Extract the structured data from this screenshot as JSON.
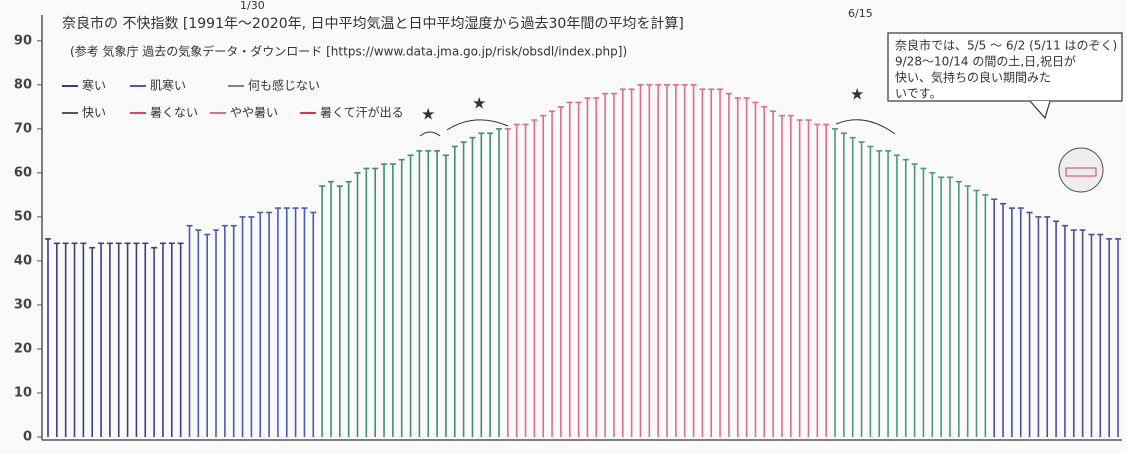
{
  "chart_data": {
    "type": "bar",
    "title": "奈良市の 不快指数 [1991年～2020年, 日中平均気温と日中平均湿度から過去30年間の平均を計算]",
    "subtitle": "(参考 気象庁 過去の気象データ・ダウンロード [https://www.data.jma.go.jp/risk/obsdl/index.php])",
    "legend": [
      {
        "name": "寒い",
        "color": "#3c3f7e"
      },
      {
        "name": "肌寒い",
        "color": "#4a5cae"
      },
      {
        "name": "何も感じない",
        "color": "#6f8f7a"
      },
      {
        "name": "快い",
        "color": "#555555"
      },
      {
        "name": "暑くない",
        "color": "#e0406a"
      },
      {
        "name": "やや暑い",
        "color": "#e26b8a"
      },
      {
        "name": "暑くて汗が出る",
        "color": "#d8344a"
      }
    ],
    "annotations": [
      "1/30",
      "6/15"
    ],
    "note": [
      "奈良市では、5/5 ～ 6/2 (5/11 はのぞく)",
      "9/28～10/14 の間の土,日,祝日が",
      "快い、気持ちの良い期間みた",
      "いです。"
    ],
    "values": [
      45,
      44,
      44,
      44,
      44,
      43,
      44,
      44,
      44,
      44,
      44,
      44,
      43,
      44,
      44,
      44,
      48,
      47,
      46,
      47,
      48,
      48,
      50,
      50,
      51,
      51,
      52,
      52,
      52,
      52,
      51,
      57,
      58,
      57,
      58,
      60,
      61,
      61,
      62,
      62,
      63,
      64,
      65,
      65,
      65,
      64,
      66,
      67,
      68,
      69,
      69,
      70,
      70,
      71,
      71,
      72,
      73,
      74,
      75,
      76,
      76,
      77,
      77,
      78,
      78,
      79,
      79,
      80,
      80,
      80,
      80,
      80,
      80,
      80,
      79,
      79,
      79,
      78,
      77,
      77,
      76,
      75,
      74,
      73,
      73,
      72,
      72,
      71,
      71,
      70,
      69,
      68,
      67,
      66,
      65,
      65,
      64,
      63,
      62,
      61,
      60,
      59,
      59,
      58,
      57,
      56,
      55,
      54,
      53,
      52,
      52,
      51,
      50,
      50,
      49,
      48,
      47,
      47,
      46,
      46,
      45,
      45
    ],
    "colors": [
      "#3c3f7e",
      "#3c3f7e",
      "#3c3f7e",
      "#3c3f7e",
      "#3c3f7e",
      "#3c3f7e",
      "#3c3f7e",
      "#3c3f7e",
      "#3c3f7e",
      "#3c3f7e",
      "#3c3f7e",
      "#3c3f7e",
      "#3c3f7e",
      "#3c3f7e",
      "#3c3f7e",
      "#3c3f7e",
      "#4a5cae",
      "#4a5cae",
      "#4a5cae",
      "#4a5cae",
      "#4a5cae",
      "#4a5cae",
      "#4a5cae",
      "#4a5cae",
      "#4a5cae",
      "#4a5cae",
      "#4a5cae",
      "#4a5cae",
      "#4a5cae",
      "#4a5cae",
      "#4a5cae",
      "#3f8f6a",
      "#3f8f6a",
      "#3f8f6a",
      "#3f8f6a",
      "#3f8f6a",
      "#3f8f6a",
      "#3f8f6a",
      "#3f8f6a",
      "#3f8f6a",
      "#3f8f6a",
      "#3f8f6a",
      "#3f8f6a",
      "#3f8f6a",
      "#3f8f6a",
      "#3f8f6a",
      "#3f8f6a",
      "#3f8f6a",
      "#3f8f6a",
      "#3f8f6a",
      "#3f8f6a",
      "#3f8f6a",
      "#e26b8a",
      "#e26b8a",
      "#e26b8a",
      "#e26b8a",
      "#e26b8a",
      "#e26b8a",
      "#e26b8a",
      "#e26b8a",
      "#e26b8a",
      "#e26b8a",
      "#e26b8a",
      "#e26b8a",
      "#e26b8a",
      "#e26b8a",
      "#e26b8a",
      "#e26b8a",
      "#e26b8a",
      "#e26b8a",
      "#e26b8a",
      "#e26b8a",
      "#e26b8a",
      "#e26b8a",
      "#e26b8a",
      "#e26b8a",
      "#e26b8a",
      "#e26b8a",
      "#e26b8a",
      "#e26b8a",
      "#e26b8a",
      "#e26b8a",
      "#e26b8a",
      "#e26b8a",
      "#e26b8a",
      "#e26b8a",
      "#e26b8a",
      "#e26b8a",
      "#e26b8a",
      "#4a9a7a",
      "#4a9a7a",
      "#4a9a7a",
      "#4a9a7a",
      "#4a9a7a",
      "#4a9a7a",
      "#4a9a7a",
      "#4a9a7a",
      "#4a9a7a",
      "#4a9a7a",
      "#4a9a7a",
      "#4a9a7a",
      "#4a9a7a",
      "#4a9a7a",
      "#4a9a7a",
      "#4a9a7a",
      "#4a9a7a",
      "#4a9a7a",
      "#4b4f9a",
      "#4b4f9a",
      "#4b4f9a",
      "#4b4f9a",
      "#4b4f9a",
      "#4b4f9a",
      "#4b4f9a",
      "#4b4f9a",
      "#4b4f9a",
      "#4b4f9a",
      "#4b4f9a",
      "#4b4f9a",
      "#4b4f9a",
      "#4b4f9a",
      "#4b4f9a"
    ],
    "ylim": [
      0,
      92
    ],
    "yticks": [
      0,
      10,
      20,
      30,
      40,
      50,
      60,
      70,
      80,
      90
    ]
  }
}
